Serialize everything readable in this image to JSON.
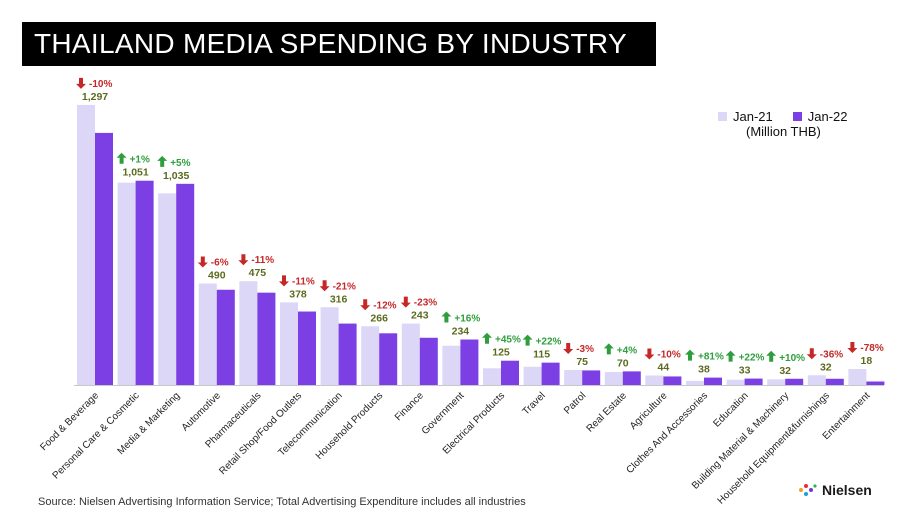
{
  "header": {
    "title": "THAILAND MEDIA SPENDING BY INDUSTRY"
  },
  "legend": {
    "jan21_label": "Jan-21",
    "jan22_label": "Jan-22",
    "unit": "(Million THB)"
  },
  "footer": {
    "source": "Source: Nielsen Advertising Information Service; Total Advertising Expenditure includes all industries"
  },
  "brand": {
    "name": "Nielsen",
    "icon": "nielsen-logo-icon"
  },
  "colors": {
    "jan21": "#dcd6f7",
    "jan22": "#7b3fe4",
    "up": "#2e9e3c",
    "down": "#c62828",
    "value": "#5b6b1e"
  },
  "chart_data": {
    "type": "bar",
    "title": "THAILAND MEDIA SPENDING BY INDUSTRY",
    "xlabel": "",
    "ylabel": "",
    "unit": "(Million THB)",
    "ylim": [
      0,
      1420
    ],
    "grid": false,
    "legend_position": "top-right",
    "categories": [
      "Food & Beverage",
      "Personal Care & Cosmetic",
      "Media & Marketing",
      "Automotive",
      "Pharmaceuticals",
      "Retail Shop/Food Outlets",
      "Telecommunication",
      "Household Products",
      "Finance",
      "Government",
      "Electrical Products",
      "Travel",
      "Patrol",
      "Real Estate",
      "Agriculture",
      "Clothes And Accessories",
      "Education",
      "Building Material & Machinery",
      "Household Equipment&furnishings",
      "Entertainment"
    ],
    "series": [
      {
        "name": "Jan-21",
        "values": [
          1441,
          1041,
          986,
          522,
          534,
          425,
          400,
          302,
          316,
          202,
          86,
          94,
          77,
          67,
          49,
          21,
          27,
          29,
          50,
          82
        ]
      },
      {
        "name": "Jan-22",
        "values": [
          1297,
          1051,
          1035,
          490,
          475,
          378,
          316,
          266,
          243,
          234,
          125,
          115,
          75,
          70,
          44,
          38,
          33,
          32,
          32,
          18
        ]
      }
    ],
    "data_labels": [
      "1,297",
      "1,051",
      "1,035",
      "490",
      "475",
      "378",
      "316",
      "266",
      "243",
      "234",
      "125",
      "115",
      "75",
      "70",
      "44",
      "38",
      "33",
      "32",
      "32",
      "18"
    ],
    "changes": [
      {
        "label": "-10%",
        "dir": "down"
      },
      {
        "label": "+1%",
        "dir": "up"
      },
      {
        "label": "+5%",
        "dir": "up"
      },
      {
        "label": "-6%",
        "dir": "down"
      },
      {
        "label": "-11%",
        "dir": "down"
      },
      {
        "label": "-11%",
        "dir": "down"
      },
      {
        "label": "-21%",
        "dir": "down"
      },
      {
        "label": "-12%",
        "dir": "down"
      },
      {
        "label": "-23%",
        "dir": "down"
      },
      {
        "label": "+16%",
        "dir": "up"
      },
      {
        "label": "+45%",
        "dir": "up"
      },
      {
        "label": "+22%",
        "dir": "up"
      },
      {
        "label": "-3%",
        "dir": "down"
      },
      {
        "label": "+4%",
        "dir": "up"
      },
      {
        "label": "-10%",
        "dir": "down"
      },
      {
        "label": "+81%",
        "dir": "up"
      },
      {
        "label": "+22%",
        "dir": "up"
      },
      {
        "label": "+10%",
        "dir": "up"
      },
      {
        "label": "-36%",
        "dir": "down"
      },
      {
        "label": "-78%",
        "dir": "down"
      }
    ]
  }
}
